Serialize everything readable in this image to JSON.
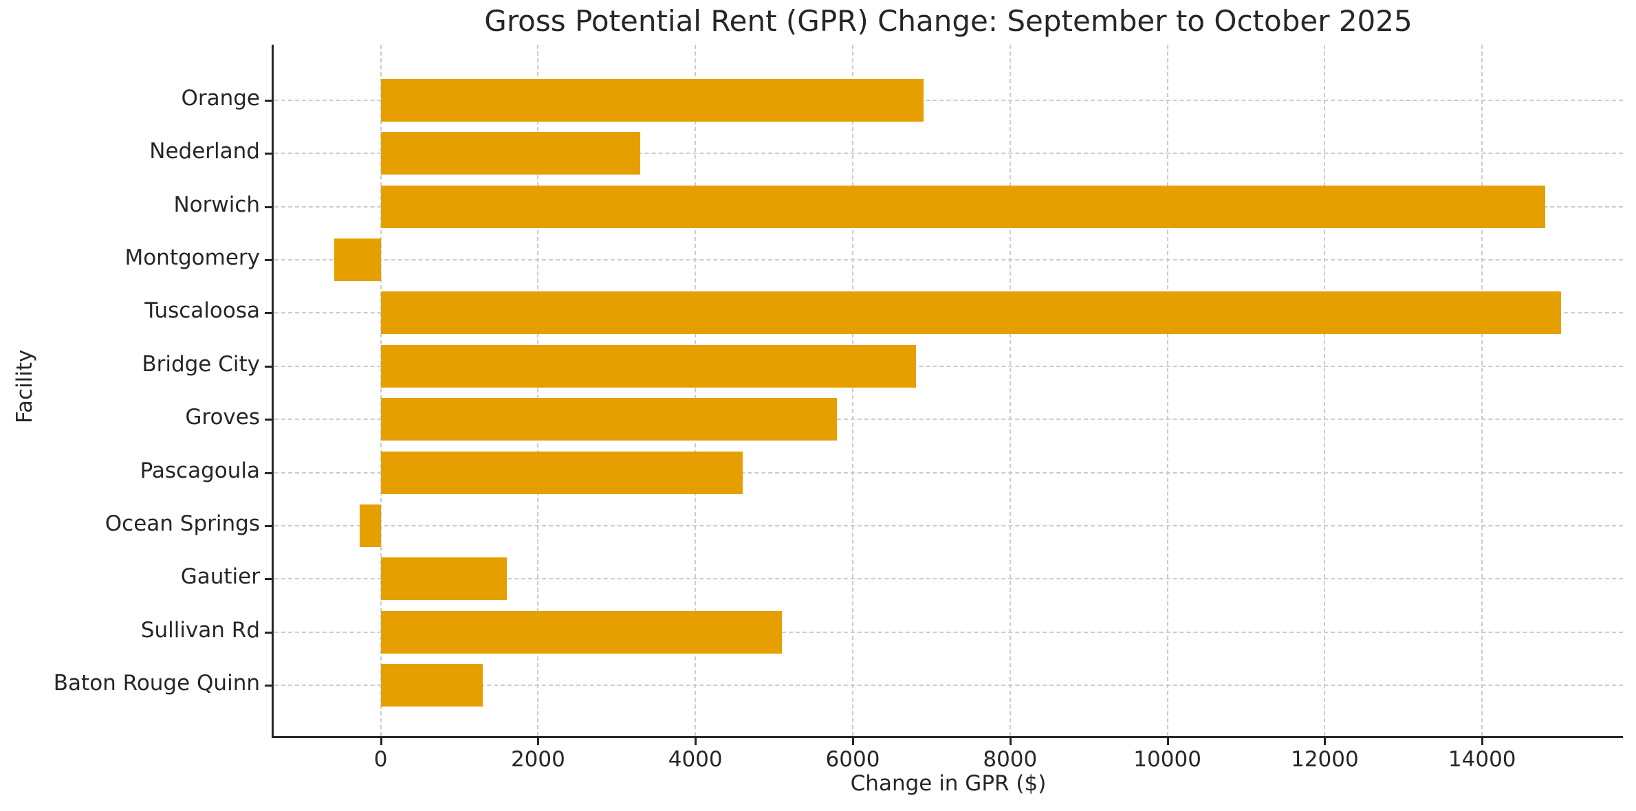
{
  "figure": {
    "background": "#ffffff"
  },
  "chart_data": {
    "type": "bar",
    "orientation": "horizontal",
    "title": "Gross Potential Rent (GPR) Change: September to October 2025",
    "xlabel": "Change in GPR ($)",
    "ylabel": "Facility",
    "categories": [
      "Orange",
      "Nederland",
      "Norwich",
      "Montgomery",
      "Tuscaloosa",
      "Bridge City",
      "Groves",
      "Pascagoula",
      "Ocean Springs",
      "Gautier",
      "Sullivan Rd",
      "Baton Rouge Quinn"
    ],
    "values": [
      6900,
      3300,
      14800,
      -590,
      15000,
      6800,
      5800,
      4600,
      -270,
      1600,
      5100,
      1300
    ],
    "xticks": [
      0,
      2000,
      4000,
      6000,
      8000,
      10000,
      12000,
      14000
    ],
    "xlim": [
      -1360,
      15790
    ],
    "grid": true,
    "legend": null,
    "bar_color": "#E5A000",
    "grid_color": "#cccccc",
    "axis_color": "#262626",
    "text_color": "#262626"
  }
}
